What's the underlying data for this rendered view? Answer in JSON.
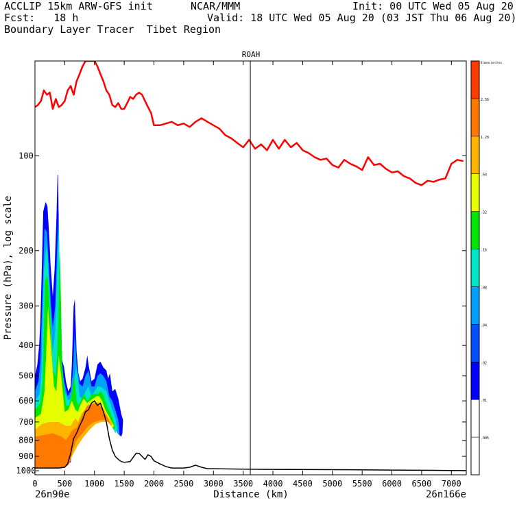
{
  "header": {
    "line1_left": "ACCLIP 15km ARW-GFS init",
    "line1_center": "NCAR/MMM",
    "line1_right": "Init: 00 UTC Wed 05 Aug 20",
    "line2_left": "Fcst:   18 h",
    "line2_right": "Valid: 18 UTC Wed 05 Aug 20 (03 JST Thu 06 Aug 20)",
    "line3_left": "Boundary Layer Tracer  Tibet Region"
  },
  "chart_data": {
    "type": "cross-section",
    "title": "ROAH",
    "xlabel": "Distance (km)",
    "ylabel": "Pressure (hPa), log scale",
    "xlim": [
      0,
      7250
    ],
    "ylim_hpa": [
      50,
      1030
    ],
    "x_ticks": [
      "0",
      "500",
      "1000",
      "1500",
      "2000",
      "2500",
      "3000",
      "3500",
      "4000",
      "4500",
      "5000",
      "5500",
      "6000",
      "6500",
      "7000"
    ],
    "x_tick_values": [
      0,
      500,
      1000,
      1500,
      2000,
      2500,
      3000,
      3500,
      4000,
      4500,
      5000,
      5500,
      6000,
      6500,
      7000
    ],
    "y_ticks": [
      "100",
      "200",
      "300",
      "400",
      "500",
      "600",
      "700",
      "800",
      "900",
      "1000"
    ],
    "y_tick_values": [
      100,
      200,
      300,
      400,
      500,
      600,
      700,
      800,
      900,
      1000
    ],
    "endpoint_left": "26n90e",
    "endpoint_right": "26n166e",
    "marker_x_km": 3620,
    "colorbar": {
      "title": "Dimensionless",
      "labels": [
        ".005",
        ".01",
        ".02",
        ".04",
        ".08",
        ".16",
        ".32",
        ".64",
        "1.28",
        "2.56"
      ],
      "colors": [
        "#ffffff",
        "#ffffff",
        "#0000ff",
        "#0050ff",
        "#00a0ff",
        "#00e5c8",
        "#00e600",
        "#e6ff00",
        "#ffb400",
        "#ff7800",
        "#ff3c00"
      ]
    },
    "series": [
      {
        "name": "tropopause",
        "color": "#ff0000",
        "x_km": [
          0,
          50,
          100,
          150,
          200,
          250,
          300,
          350,
          400,
          450,
          500,
          550,
          600,
          650,
          700,
          750,
          800,
          850,
          900,
          950,
          1000,
          1050,
          1100,
          1150,
          1200,
          1250,
          1300,
          1350,
          1400,
          1450,
          1500,
          1550,
          1600,
          1650,
          1700,
          1750,
          1800,
          1850,
          1900,
          1950,
          2000,
          2100,
          2200,
          2300,
          2400,
          2500,
          2600,
          2700,
          2800,
          2900,
          3000,
          3100,
          3200,
          3300,
          3400,
          3500,
          3600,
          3700,
          3800,
          3900,
          4000,
          4100,
          4200,
          4300,
          4400,
          4500,
          4600,
          4700,
          4800,
          4900,
          5000,
          5100,
          5200,
          5300,
          5400,
          5500,
          5600,
          5700,
          5800,
          5900,
          6000,
          6100,
          6200,
          6300,
          6400,
          6500,
          6600,
          6700,
          6800,
          6900,
          7000,
          7100,
          7200
        ],
        "p_hpa": [
          70,
          69,
          67,
          62,
          64,
          63,
          71,
          66,
          70,
          69,
          67,
          62,
          60,
          64,
          58,
          55,
          52,
          50,
          50,
          50,
          50,
          52,
          55,
          58,
          62,
          64,
          69,
          70,
          68,
          71,
          71,
          68,
          65,
          66,
          64,
          63,
          64,
          67,
          70,
          73,
          80,
          80,
          79,
          78,
          80,
          79,
          81,
          78,
          76,
          78,
          80,
          82,
          86,
          88,
          91,
          94,
          89,
          95,
          92,
          96,
          89,
          95,
          89,
          94,
          91,
          96,
          98,
          101,
          103,
          102,
          107,
          109,
          103,
          106,
          108,
          111,
          101,
          107,
          106,
          110,
          113,
          112,
          116,
          118,
          122,
          124,
          120,
          121,
          119,
          118,
          106,
          103,
          104
        ]
      },
      {
        "name": "terrain",
        "color": "#000000",
        "x_km": [
          0,
          100,
          200,
          300,
          400,
          500,
          550,
          600,
          650,
          700,
          750,
          800,
          850,
          900,
          950,
          1000,
          1050,
          1100,
          1150,
          1200,
          1250,
          1300,
          1350,
          1400,
          1450,
          1500,
          1600,
          1700,
          1750,
          1800,
          1850,
          1900,
          1950,
          2000,
          2100,
          2200,
          2300,
          2400,
          2500,
          2600,
          2700,
          2800,
          2900,
          3000,
          3500,
          4000,
          5000,
          6000,
          7000,
          7250
        ],
        "p_hpa": [
          980,
          980,
          980,
          980,
          980,
          975,
          950,
          880,
          790,
          760,
          720,
          690,
          650,
          640,
          610,
          600,
          620,
          610,
          650,
          700,
          790,
          860,
          900,
          920,
          935,
          940,
          935,
          880,
          880,
          900,
          920,
          890,
          900,
          930,
          950,
          970,
          980,
          980,
          980,
          975,
          960,
          975,
          985,
          985,
          988,
          990,
          992,
          995,
          998,
          999
        ]
      }
    ],
    "tracer_field": [
      {
        "level": ".01",
        "color": "#0000ff",
        "x_km": [
          0,
          40,
          70,
          90,
          110,
          140,
          180,
          210,
          240,
          260,
          300,
          330,
          360,
          380,
          390,
          400,
          420,
          450,
          490,
          520,
          560,
          600,
          620,
          650,
          670,
          700,
          730,
          760,
          800,
          850,
          880,
          900,
          950,
          1000,
          1050,
          1100,
          1150,
          1200,
          1230,
          1260,
          1300,
          1350,
          1400,
          1450,
          1480,
          1470,
          1450,
          1420,
          1400,
          1380,
          1350,
          1300,
          1250,
          1200,
          1100,
          1000,
          900,
          800,
          700,
          650,
          600,
          500,
          400,
          300,
          200,
          100,
          0
        ],
        "p_hpa": [
          500,
          460,
          400,
          340,
          250,
          150,
          140,
          145,
          180,
          220,
          280,
          230,
          160,
          115,
          115,
          180,
          320,
          440,
          470,
          520,
          560,
          540,
          460,
          300,
          285,
          420,
          490,
          520,
          510,
          470,
          430,
          460,
          520,
          510,
          460,
          450,
          470,
          480,
          510,
          490,
          560,
          550,
          590,
          660,
          690,
          760,
          780,
          770,
          720,
          690,
          680,
          650,
          620,
          610,
          600,
          610,
          640,
          680,
          760,
          800,
          940,
          960,
          970,
          975,
          980,
          980,
          980
        ]
      },
      {
        "level": ".04",
        "color": "#00a0ff",
        "x_km": [
          0,
          60,
          90,
          120,
          160,
          200,
          230,
          270,
          300,
          340,
          370,
          400,
          430,
          470,
          510,
          550,
          600,
          640,
          670,
          700,
          750,
          800,
          850,
          900,
          950,
          1000,
          1050,
          1100,
          1150,
          1200,
          1250,
          1300,
          1350,
          1400,
          1420,
          1400,
          1300,
          1200,
          1100,
          1000,
          900,
          800,
          700,
          600,
          500,
          400,
          300,
          200,
          100,
          0
        ],
        "p_hpa": [
          560,
          520,
          450,
          300,
          170,
          175,
          220,
          300,
          350,
          300,
          200,
          150,
          380,
          500,
          540,
          580,
          560,
          480,
          360,
          460,
          530,
          540,
          500,
          480,
          540,
          540,
          500,
          490,
          500,
          520,
          580,
          600,
          640,
          690,
          760,
          770,
          700,
          640,
          630,
          640,
          680,
          720,
          790,
          850,
          950,
          970,
          975,
          980,
          980,
          980
        ]
      },
      {
        "level": ".16",
        "color": "#00e5c8",
        "x_km": [
          0,
          80,
          110,
          150,
          200,
          240,
          270,
          300,
          340,
          370,
          400,
          450,
          500,
          560,
          600,
          650,
          700,
          750,
          800,
          850,
          900,
          950,
          1000,
          1050,
          1100,
          1150,
          1200,
          1250,
          1300,
          1350,
          1380,
          1350,
          1300,
          1200,
          1100,
          1000,
          900,
          800,
          700,
          600,
          500,
          400,
          300,
          200,
          100,
          0
        ],
        "p_hpa": [
          600,
          570,
          480,
          230,
          190,
          260,
          340,
          420,
          360,
          240,
          170,
          440,
          560,
          600,
          590,
          520,
          470,
          580,
          590,
          560,
          540,
          580,
          560,
          540,
          540,
          550,
          560,
          600,
          640,
          680,
          740,
          760,
          720,
          660,
          650,
          660,
          700,
          740,
          800,
          870,
          955,
          970,
          975,
          980,
          980,
          980
        ]
      },
      {
        "level": ".32",
        "color": "#00e600",
        "x_km": [
          0,
          90,
          130,
          170,
          210,
          250,
          300,
          350,
          380,
          420,
          460,
          520,
          580,
          620,
          660,
          700,
          740,
          780,
          830,
          870,
          910,
          960,
          1010,
          1060,
          1110,
          1160,
          1210,
          1260,
          1310,
          1350,
          1320,
          1250,
          1150,
          1050,
          950,
          850,
          750,
          650,
          550,
          450,
          350,
          250,
          150,
          0
        ],
        "p_hpa": [
          640,
          610,
          520,
          250,
          240,
          310,
          480,
          500,
          400,
          200,
          480,
          620,
          620,
          560,
          500,
          600,
          620,
          590,
          570,
          600,
          590,
          570,
          570,
          570,
          560,
          580,
          620,
          650,
          690,
          730,
          740,
          700,
          670,
          670,
          690,
          730,
          770,
          830,
          890,
          960,
          975,
          980,
          980,
          980
        ]
      },
      {
        "level": ".64",
        "color": "#e6ff00",
        "x_km": [
          0,
          100,
          160,
          220,
          260,
          320,
          360,
          400,
          440,
          500,
          560,
          620,
          680,
          720,
          760,
          820,
          880,
          920,
          980,
          1030,
          1080,
          1130,
          1180,
          1240,
          1290,
          1330,
          1300,
          1220,
          1120,
          1020,
          920,
          820,
          720,
          620,
          520,
          420,
          320,
          200,
          0
        ],
        "p_hpa": [
          680,
          660,
          560,
          300,
          380,
          540,
          560,
          430,
          500,
          650,
          640,
          600,
          640,
          650,
          620,
          590,
          610,
          600,
          590,
          580,
          580,
          600,
          640,
          670,
          700,
          720,
          730,
          700,
          690,
          690,
          720,
          760,
          820,
          880,
          940,
          970,
          975,
          980,
          980
        ]
      },
      {
        "level": "1.28",
        "color": "#ffb400",
        "x_km": [
          0,
          120,
          250,
          400,
          520,
          600,
          680,
          720,
          780,
          840,
          900,
          960,
          1020,
          1080,
          1140,
          1200,
          1260,
          1300,
          1280,
          1220,
          1120,
          1020,
          920,
          820,
          720,
          620,
          520,
          420,
          300,
          150,
          0
        ],
        "p_hpa": [
          740,
          710,
          700,
          700,
          720,
          720,
          680,
          700,
          660,
          640,
          620,
          620,
          610,
          605,
          630,
          660,
          690,
          710,
          720,
          700,
          700,
          710,
          740,
          780,
          830,
          900,
          950,
          970,
          980,
          980,
          980
        ]
      },
      {
        "level": "2.56",
        "color": "#ff7800",
        "x_km": [
          0,
          150,
          300,
          450,
          520,
          560,
          600,
          640,
          700,
          760,
          820,
          880,
          940,
          1000,
          1060,
          1120,
          1180,
          1240,
          1270,
          1240,
          1180,
          1100,
          1000,
          900,
          800,
          700,
          640,
          600,
          560,
          500,
          400,
          300,
          200,
          100,
          0
        ],
        "p_hpa": [
          780,
          770,
          760,
          780,
          800,
          780,
          760,
          740,
          730,
          690,
          650,
          620,
          615,
          610,
          615,
          630,
          660,
          690,
          710,
          700,
          690,
          690,
          700,
          720,
          760,
          800,
          850,
          930,
          960,
          975,
          980,
          980,
          980,
          980,
          980
        ]
      }
    ]
  }
}
